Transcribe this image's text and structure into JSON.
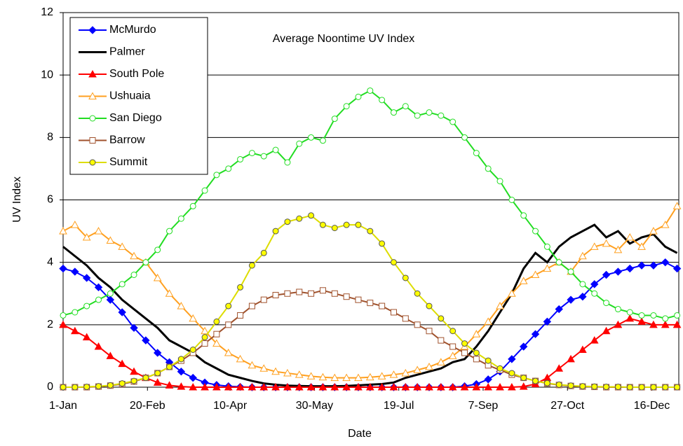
{
  "chart_data": {
    "type": "line",
    "title": "Average Noontime UV Index",
    "x_label": "Date",
    "y_label": "UV Index",
    "x": [
      1,
      8,
      15,
      22,
      29,
      36,
      43,
      50,
      57,
      64,
      71,
      78,
      85,
      92,
      99,
      106,
      113,
      120,
      127,
      134,
      141,
      148,
      155,
      162,
      169,
      176,
      183,
      190,
      197,
      204,
      211,
      218,
      225,
      232,
      239,
      246,
      253,
      260,
      267,
      274,
      281,
      288,
      295,
      302,
      309,
      316,
      323,
      330,
      337,
      344,
      351,
      358,
      365
    ],
    "xlim": [
      1,
      366
    ],
    "xticks": [
      {
        "value": 1,
        "label": "1-Jan"
      },
      {
        "value": 51,
        "label": "20-Feb"
      },
      {
        "value": 100,
        "label": "10-Apr"
      },
      {
        "value": 150,
        "label": "30-May"
      },
      {
        "value": 200,
        "label": "19-Jul"
      },
      {
        "value": 250,
        "label": "7-Sep"
      },
      {
        "value": 300,
        "label": "27-Oct"
      },
      {
        "value": 350,
        "label": "16-Dec"
      }
    ],
    "ylim": [
      0,
      12
    ],
    "yticks": [
      0,
      2,
      4,
      6,
      8,
      10,
      12
    ],
    "grid": true,
    "legend": "upper left",
    "series": [
      {
        "name": "McMurdo",
        "color": "#0000ff",
        "marker": "diamond",
        "values": [
          3.8,
          3.7,
          3.5,
          3.2,
          2.8,
          2.4,
          1.9,
          1.5,
          1.1,
          0.8,
          0.5,
          0.3,
          0.15,
          0.07,
          0.03,
          0.01,
          0,
          0,
          0,
          0,
          0,
          0,
          0,
          0,
          0,
          0,
          0,
          0,
          0,
          0,
          0,
          0,
          0,
          0,
          0.03,
          0.1,
          0.25,
          0.5,
          0.9,
          1.3,
          1.7,
          2.1,
          2.5,
          2.8,
          2.9,
          3.3,
          3.6,
          3.7,
          3.8,
          3.9,
          3.9,
          4.0,
          3.8
        ]
      },
      {
        "name": "Palmer",
        "color": "#000000",
        "marker": "none",
        "values": [
          4.5,
          4.2,
          3.9,
          3.5,
          3.2,
          2.8,
          2.5,
          2.2,
          1.9,
          1.5,
          1.3,
          1.1,
          0.8,
          0.6,
          0.4,
          0.3,
          0.2,
          0.12,
          0.08,
          0.05,
          0.04,
          0.03,
          0.03,
          0.03,
          0.04,
          0.06,
          0.08,
          0.1,
          0.15,
          0.3,
          0.4,
          0.5,
          0.6,
          0.8,
          0.9,
          1.3,
          1.8,
          2.4,
          3.0,
          3.8,
          4.3,
          4.0,
          4.5,
          4.8,
          5.0,
          5.2,
          4.8,
          5.0,
          4.6,
          4.8,
          4.9,
          4.5,
          4.3
        ]
      },
      {
        "name": "South Pole",
        "color": "#ff0000",
        "marker": "triangle",
        "values": [
          2.0,
          1.8,
          1.6,
          1.3,
          1.0,
          0.75,
          0.5,
          0.3,
          0.15,
          0.06,
          0.02,
          0,
          0,
          0,
          0,
          0,
          0,
          0,
          0,
          0,
          0,
          0,
          0,
          0,
          0,
          0,
          0,
          0,
          0,
          0,
          0,
          0,
          0,
          0,
          0,
          0,
          0,
          0,
          0,
          0.02,
          0.1,
          0.3,
          0.6,
          0.9,
          1.2,
          1.5,
          1.8,
          2.0,
          2.2,
          2.1,
          2.0,
          2.0,
          2.0
        ]
      },
      {
        "name": "Ushuaia",
        "color": "#ffa020",
        "marker": "open-triangle",
        "values": [
          5.0,
          5.2,
          4.8,
          5.0,
          4.7,
          4.5,
          4.2,
          4.0,
          3.5,
          3.0,
          2.6,
          2.2,
          1.8,
          1.4,
          1.1,
          0.9,
          0.7,
          0.6,
          0.5,
          0.45,
          0.4,
          0.35,
          0.32,
          0.3,
          0.3,
          0.3,
          0.32,
          0.35,
          0.4,
          0.45,
          0.55,
          0.65,
          0.8,
          1.0,
          1.3,
          1.7,
          2.1,
          2.6,
          3.0,
          3.4,
          3.6,
          3.8,
          4.0,
          3.7,
          4.2,
          4.5,
          4.6,
          4.4,
          4.8,
          4.5,
          5.0,
          5.2,
          5.8
        ]
      },
      {
        "name": "San Diego",
        "color": "#22dd22",
        "marker": "open-circle",
        "values": [
          2.3,
          2.4,
          2.6,
          2.8,
          3.0,
          3.3,
          3.6,
          4.0,
          4.4,
          5.0,
          5.4,
          5.8,
          6.3,
          6.8,
          7.0,
          7.3,
          7.5,
          7.4,
          7.6,
          7.2,
          7.8,
          8.0,
          7.9,
          8.6,
          9.0,
          9.3,
          9.5,
          9.2,
          8.8,
          9.0,
          8.7,
          8.8,
          8.7,
          8.5,
          8.0,
          7.5,
          7.0,
          6.6,
          6.0,
          5.5,
          5.0,
          4.5,
          4.0,
          3.7,
          3.3,
          3.0,
          2.7,
          2.5,
          2.4,
          2.3,
          2.3,
          2.2,
          2.3
        ]
      },
      {
        "name": "Barrow",
        "color": "#a0522d",
        "marker": "open-square",
        "values": [
          0,
          0,
          0,
          0.02,
          0.05,
          0.1,
          0.18,
          0.3,
          0.45,
          0.65,
          0.85,
          1.1,
          1.4,
          1.7,
          2.0,
          2.3,
          2.6,
          2.8,
          2.95,
          3.0,
          3.05,
          3.0,
          3.1,
          3.0,
          2.9,
          2.8,
          2.7,
          2.6,
          2.4,
          2.2,
          2.0,
          1.8,
          1.5,
          1.3,
          1.1,
          0.9,
          0.7,
          0.55,
          0.4,
          0.3,
          0.2,
          0.12,
          0.07,
          0.04,
          0.02,
          0.01,
          0,
          0,
          0,
          0,
          0,
          0,
          0
        ]
      },
      {
        "name": "Summit",
        "color": "#ffff00",
        "marker": "circle",
        "values": [
          0,
          0,
          0.01,
          0.03,
          0.06,
          0.12,
          0.2,
          0.3,
          0.45,
          0.65,
          0.9,
          1.2,
          1.6,
          2.1,
          2.6,
          3.2,
          3.9,
          4.3,
          5.0,
          5.3,
          5.4,
          5.5,
          5.2,
          5.1,
          5.2,
          5.2,
          5.0,
          4.6,
          4.0,
          3.5,
          3.0,
          2.6,
          2.2,
          1.8,
          1.4,
          1.1,
          0.85,
          0.6,
          0.45,
          0.3,
          0.2,
          0.13,
          0.08,
          0.05,
          0.03,
          0.02,
          0.01,
          0.01,
          0,
          0,
          0,
          0,
          0
        ]
      }
    ]
  }
}
